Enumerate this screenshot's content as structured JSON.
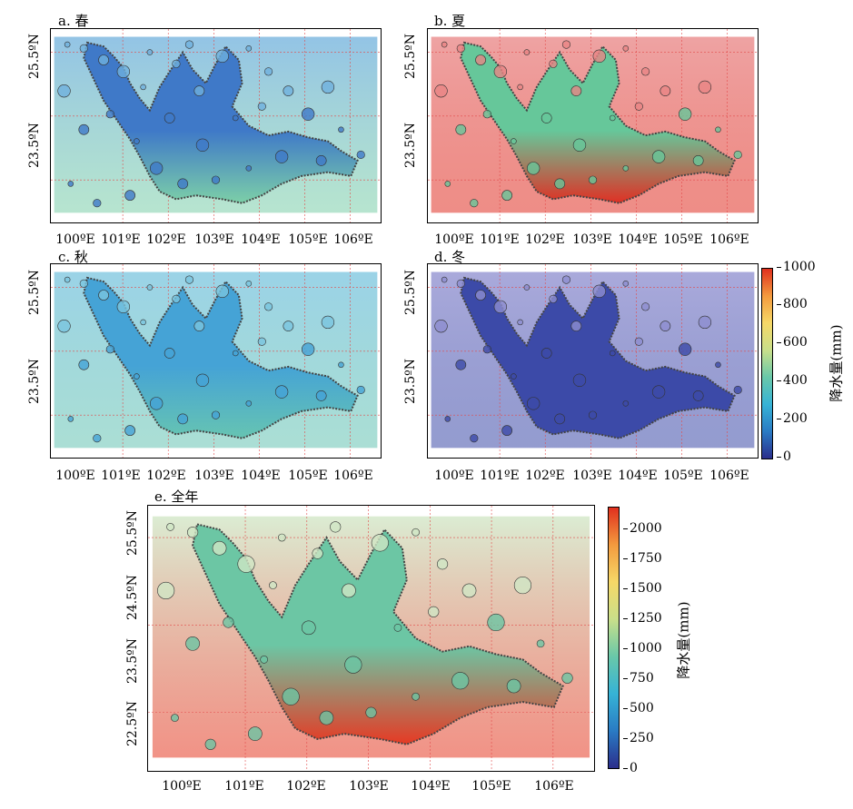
{
  "panels": [
    {
      "id": "a",
      "title": "a. 春",
      "season_tint": "#6fb0dd",
      "inside_tint": "#3f79c8",
      "south_tint": "#7ccfa8"
    },
    {
      "id": "b",
      "title": "b. 夏",
      "season_tint": "#e88484",
      "inside_tint": "#66c79a",
      "south_tint": "#e03024"
    },
    {
      "id": "c",
      "title": "c. 秋",
      "season_tint": "#79c4df",
      "inside_tint": "#45a3d6",
      "south_tint": "#66c4b2"
    },
    {
      "id": "d",
      "title": "d. 冬",
      "season_tint": "#8d8dcf",
      "inside_tint": "#3c4aa8",
      "south_tint": "#3c4aa8"
    },
    {
      "id": "e",
      "title": "e. 全年",
      "season_tint": "#cfe6c4",
      "inside_tint": "#6cc6a4",
      "south_tint": "#e63a24"
    }
  ],
  "x_ticks": [
    "100ºE",
    "101ºE",
    "102ºE",
    "103ºE",
    "104ºE",
    "105ºE",
    "106ºE"
  ],
  "y_ticks_small": [
    "25.5ºN",
    "23.5ºN"
  ],
  "y_ticks_large": [
    "25.5ºN",
    "24.5ºN",
    "23.5ºN",
    "22.5ºN"
  ],
  "colorbar_seasonal": {
    "label": "降水量(mm)",
    "ticks": [
      "1000",
      "800",
      "600",
      "400",
      "200",
      "0"
    ]
  },
  "colorbar_annual": {
    "label": "降水量(mm)",
    "ticks": [
      "2000",
      "1750",
      "1500",
      "1250",
      "1000",
      "750",
      "500",
      "250",
      "0"
    ]
  },
  "colormap": [
    "#2b2e8c",
    "#2a7bc4",
    "#36b3d6",
    "#69c8a9",
    "#c9df8a",
    "#f6d867",
    "#f39a3e",
    "#e0301e"
  ]
}
